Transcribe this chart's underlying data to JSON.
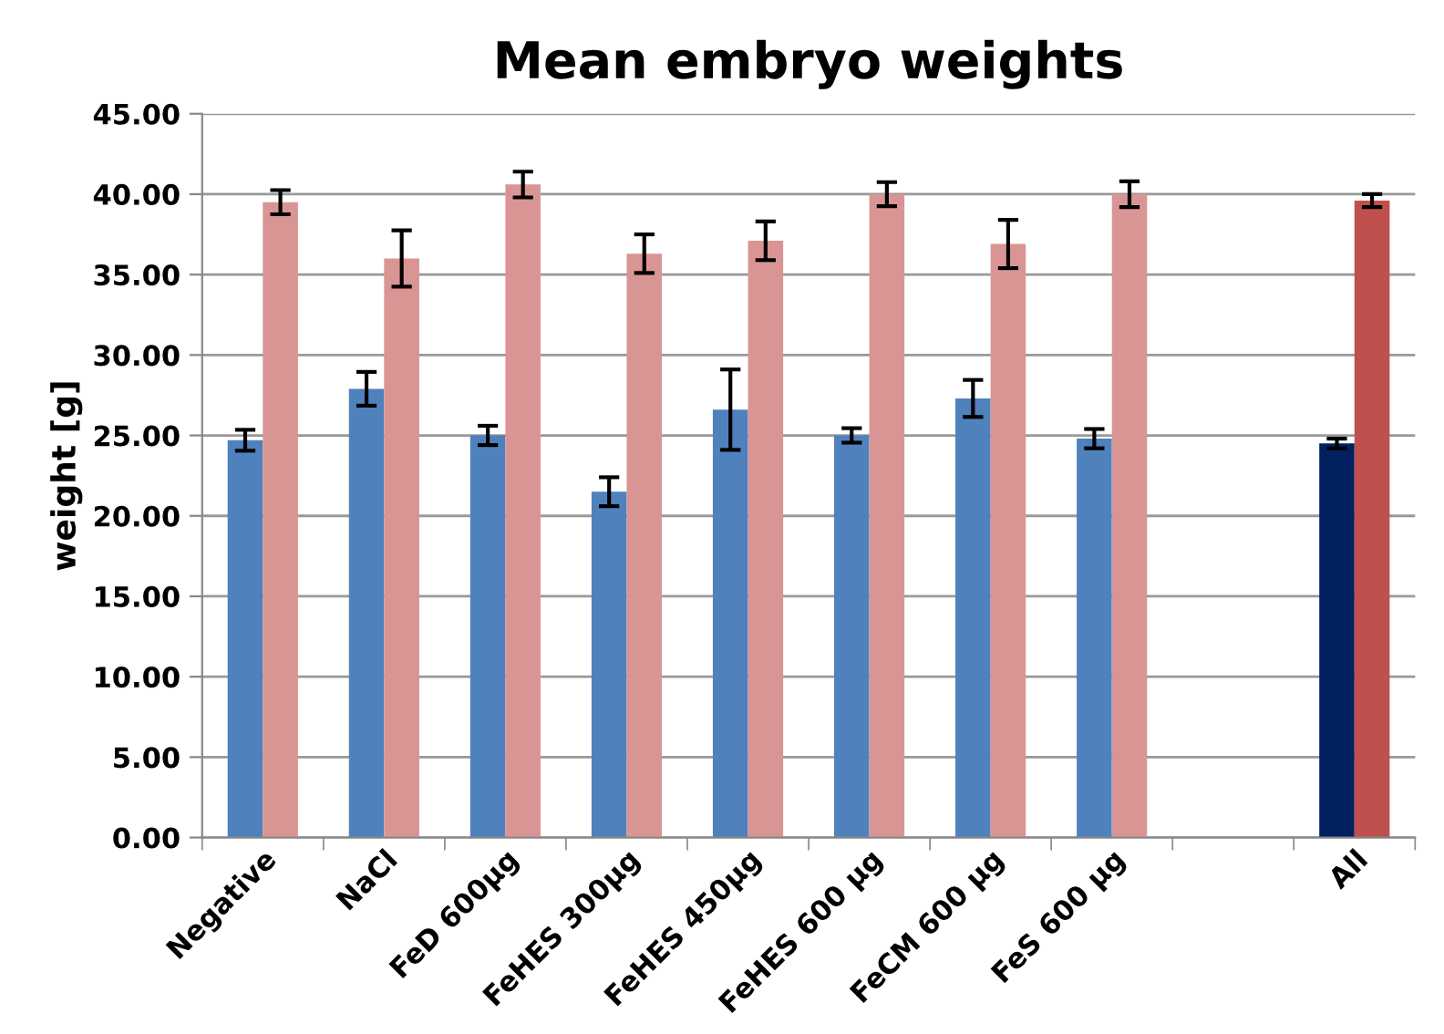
{
  "chart_data": {
    "type": "bar",
    "title": "Mean embryo weights",
    "ylabel": "weight [g]",
    "categories": [
      "Negative",
      "NaCl",
      "FeD 600µg",
      "FeHES 300µg",
      "FeHES 450µg",
      "FeHES 600 µg",
      "FeCM 600 µg",
      "FeS 600 µg",
      null,
      "All"
    ],
    "series": [
      {
        "colors": [
          "#4f81bd",
          "#4f81bd",
          "#4f81bd",
          "#4f81bd",
          "#4f81bd",
          "#4f81bd",
          "#4f81bd",
          "#4f81bd",
          "#4f81bd",
          "#002060"
        ],
        "values": [
          24.7,
          27.9,
          25.0,
          21.5,
          26.6,
          25.0,
          27.3,
          24.8,
          null,
          24.5
        ],
        "errors": [
          0.65,
          1.05,
          0.6,
          0.9,
          2.5,
          0.45,
          1.15,
          0.6,
          null,
          0.3
        ]
      },
      {
        "colors": [
          "#d99594",
          "#d99594",
          "#d99594",
          "#d99594",
          "#d99594",
          "#d99594",
          "#d99594",
          "#d99594",
          "#d99594",
          "#c0504d"
        ],
        "values": [
          39.5,
          36.0,
          40.6,
          36.3,
          37.1,
          40.0,
          36.9,
          40.0,
          null,
          39.6
        ],
        "errors": [
          0.75,
          1.75,
          0.8,
          1.2,
          1.2,
          0.75,
          1.5,
          0.8,
          null,
          0.4
        ]
      }
    ],
    "ylim": [
      0,
      45
    ],
    "yticks": [
      {
        "value": 0,
        "label": "0.00"
      },
      {
        "value": 5,
        "label": "5.00"
      },
      {
        "value": 10,
        "label": "10.00"
      },
      {
        "value": 15,
        "label": "15.00"
      },
      {
        "value": 20,
        "label": "20.00"
      },
      {
        "value": 25,
        "label": "25.00"
      },
      {
        "value": 30,
        "label": "30.00"
      },
      {
        "value": 35,
        "label": "35.00"
      },
      {
        "value": 40,
        "label": "40.00"
      },
      {
        "value": 45,
        "label": "45.00"
      }
    ],
    "grid": "y"
  }
}
